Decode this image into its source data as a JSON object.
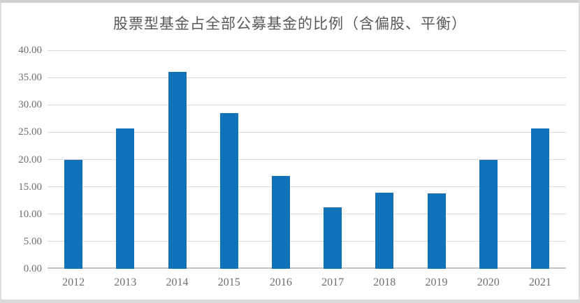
{
  "chart_data": {
    "type": "bar",
    "title": "股票型基金占全部公募基金的比例（含偏股、平衡）",
    "categories": [
      "2012",
      "2013",
      "2014",
      "2015",
      "2016",
      "2017",
      "2018",
      "2019",
      "2020",
      "2021"
    ],
    "values": [
      19.9,
      25.7,
      36.1,
      28.5,
      17.0,
      11.3,
      13.9,
      13.8,
      19.9,
      25.7
    ],
    "xlabel": "",
    "ylabel": "",
    "ylim": [
      0,
      40
    ],
    "ytick_step": 5,
    "ytick_labels_top_to_bottom": [
      "40.00",
      "35.00",
      "30.00",
      "25.00",
      "20.00",
      "15.00",
      "10.00",
      "5.00",
      "0.00"
    ],
    "grid": "horizontal",
    "legend": "none",
    "colors": {
      "bar": "#1272b9",
      "gridline": "#d9d9d9",
      "axis_line": "#c3c3c3",
      "tick_label": "#6e6e6e",
      "title": "#595959",
      "background": "#ffffff",
      "frame_border": "#d4d4d4"
    }
  }
}
